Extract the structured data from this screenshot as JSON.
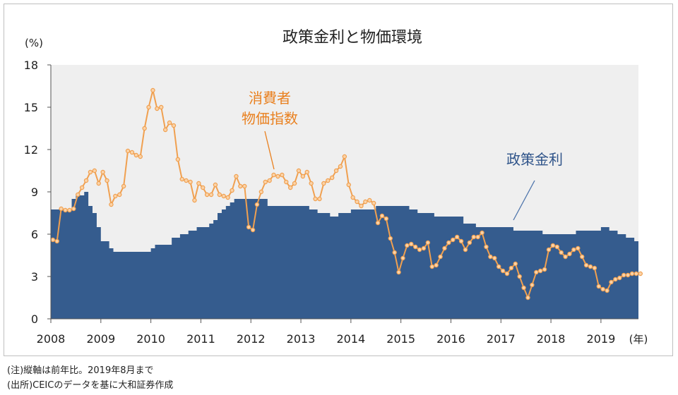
{
  "chart_data": {
    "type": "area",
    "title": "政策金利と物価環境",
    "ylabel": "(%)",
    "xunit": "(年)",
    "ylim": [
      0,
      18
    ],
    "xlim": [
      2008.0,
      2019.75
    ],
    "yticks": [
      0,
      3,
      6,
      9,
      12,
      15,
      18
    ],
    "xticks": [
      "2008",
      "2009",
      "2010",
      "2011",
      "2012",
      "2013",
      "2014",
      "2015",
      "2016",
      "2017",
      "2018",
      "2019"
    ],
    "plot_bg": "#efefef",
    "series": [
      {
        "name": "政策金利",
        "label": "政策金利",
        "kind": "step-area",
        "color": "#355c8e",
        "label_color": "#2e5389",
        "x": [
          2008.0,
          2008.417,
          2008.5,
          2008.667,
          2008.75,
          2008.833,
          2008.917,
          2009.0,
          2009.167,
          2009.25,
          2009.333,
          2009.583,
          2010.0,
          2010.083,
          2010.333,
          2010.417,
          2010.583,
          2010.75,
          2010.917,
          2011.0,
          2011.167,
          2011.25,
          2011.333,
          2011.417,
          2011.5,
          2011.583,
          2011.667,
          2012.333,
          2012.5,
          2012.75,
          2013.0,
          2013.167,
          2013.333,
          2013.583,
          2013.75,
          2014.0,
          2014.5,
          2015.0,
          2015.167,
          2015.333,
          2015.667,
          2016.25,
          2016.5,
          2016.75,
          2017.0,
          2017.25,
          2017.5,
          2017.833,
          2018.25,
          2018.5,
          2019.0,
          2019.167,
          2019.333,
          2019.5,
          2019.667
        ],
        "values": [
          7.75,
          8.5,
          8.75,
          9.0,
          8.0,
          7.5,
          6.5,
          5.5,
          5.0,
          4.75,
          4.75,
          4.75,
          5.0,
          5.25,
          5.25,
          5.75,
          6.0,
          6.25,
          6.5,
          6.5,
          6.75,
          7.0,
          7.5,
          7.75,
          8.0,
          8.25,
          8.5,
          8.0,
          8.0,
          8.0,
          8.0,
          7.75,
          7.5,
          7.25,
          7.5,
          7.75,
          8.0,
          8.0,
          7.75,
          7.5,
          7.25,
          6.75,
          6.5,
          6.5,
          6.5,
          6.25,
          6.25,
          6.0,
          6.0,
          6.25,
          6.5,
          6.25,
          6.0,
          5.75,
          5.5
        ]
      },
      {
        "name": "消費者物価指数",
        "label": [
          "消費者",
          "物価指数"
        ],
        "kind": "line",
        "color": "#f0a050",
        "label_color": "#e9801f",
        "start": 2008.0,
        "step": 0.08333,
        "values": [
          5.6,
          5.5,
          7.8,
          7.7,
          7.7,
          7.8,
          8.8,
          9.3,
          9.8,
          10.4,
          10.5,
          9.6,
          10.4,
          9.8,
          8.1,
          8.7,
          8.8,
          9.4,
          11.9,
          11.8,
          11.6,
          11.5,
          13.5,
          15.0,
          16.2,
          14.9,
          15.0,
          13.4,
          13.9,
          13.7,
          11.3,
          9.9,
          9.8,
          9.7,
          8.4,
          9.6,
          9.3,
          8.8,
          8.8,
          9.5,
          8.8,
          8.7,
          8.6,
          9.1,
          10.1,
          9.4,
          9.4,
          6.5,
          6.3,
          8.1,
          9.0,
          9.7,
          9.8,
          10.2,
          10.1,
          10.2,
          9.7,
          9.3,
          9.6,
          10.5,
          10.1,
          10.4,
          9.6,
          8.5,
          8.5,
          9.6,
          9.8,
          10.0,
          10.5,
          10.8,
          11.5,
          9.5,
          8.6,
          8.3,
          8.0,
          8.3,
          8.4,
          8.2,
          6.8,
          7.3,
          7.1,
          5.7,
          4.7,
          3.3,
          4.3,
          5.2,
          5.3,
          5.1,
          4.9,
          5.0,
          5.4,
          3.7,
          3.8,
          4.4,
          5.0,
          5.4,
          5.6,
          5.8,
          5.5,
          4.9,
          5.4,
          5.8,
          5.8,
          6.1,
          5.1,
          4.4,
          4.3,
          3.7,
          3.4,
          3.2,
          3.6,
          3.9,
          3.0,
          2.2,
          1.5,
          2.4,
          3.3,
          3.4,
          3.5,
          4.9,
          5.2,
          5.1,
          4.7,
          4.4,
          4.6,
          4.9,
          5.0,
          4.4,
          3.8,
          3.7,
          3.6,
          2.3,
          2.1,
          2.0,
          2.6,
          2.8,
          2.9,
          3.1,
          3.1,
          3.2,
          3.2,
          3.2
        ]
      }
    ]
  },
  "notes": [
    "(注)縦軸は前年比。2019年8月まで",
    "(出所)CEICのデータを基に大和証券作成"
  ]
}
